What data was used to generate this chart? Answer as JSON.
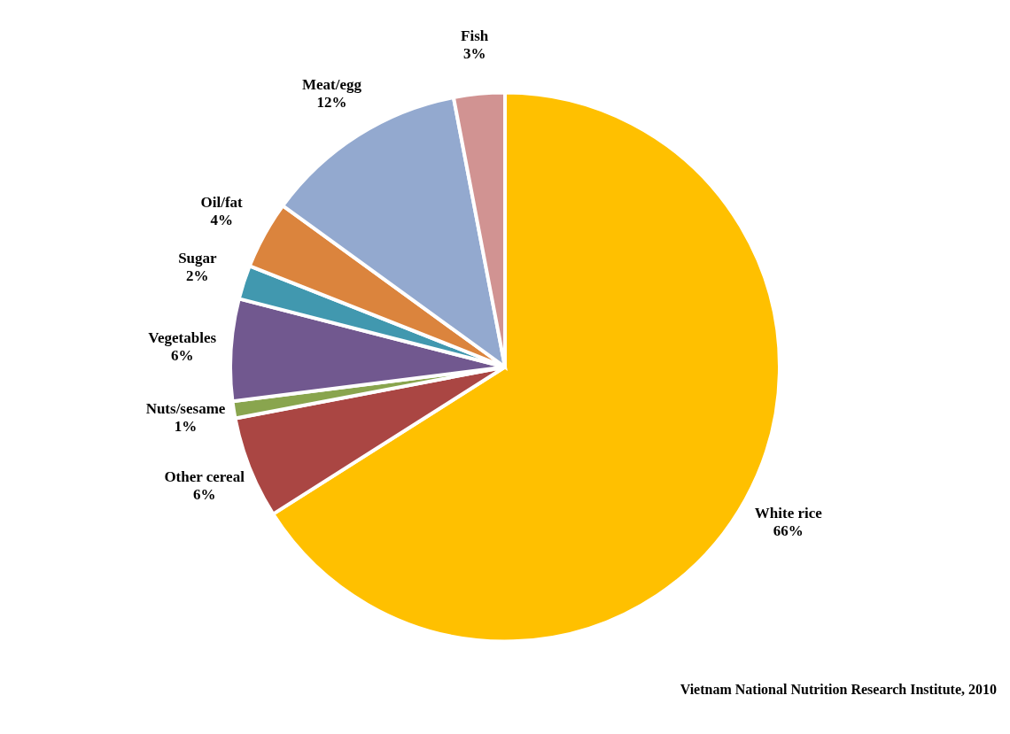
{
  "chart_data": {
    "type": "pie",
    "categories": [
      "White rice",
      "Other cereal",
      "Nuts/sesame",
      "Vegetables",
      "Sugar",
      "Oil/fat",
      "Meat/egg",
      "Fish"
    ],
    "values": [
      66,
      6,
      1,
      6,
      2,
      4,
      12,
      3
    ],
    "colors": [
      "#ffc000",
      "#aa4643",
      "#89a54e",
      "#71588f",
      "#4198af",
      "#db843d",
      "#93a9cf",
      "#d19392"
    ],
    "value_labels": [
      "66%",
      "6%",
      "1%",
      "6%",
      "2%",
      "4%",
      "12%",
      "3%"
    ],
    "legend": false,
    "annotations": [
      "Vietnam National Nutrition Research Institute, 2010"
    ]
  }
}
